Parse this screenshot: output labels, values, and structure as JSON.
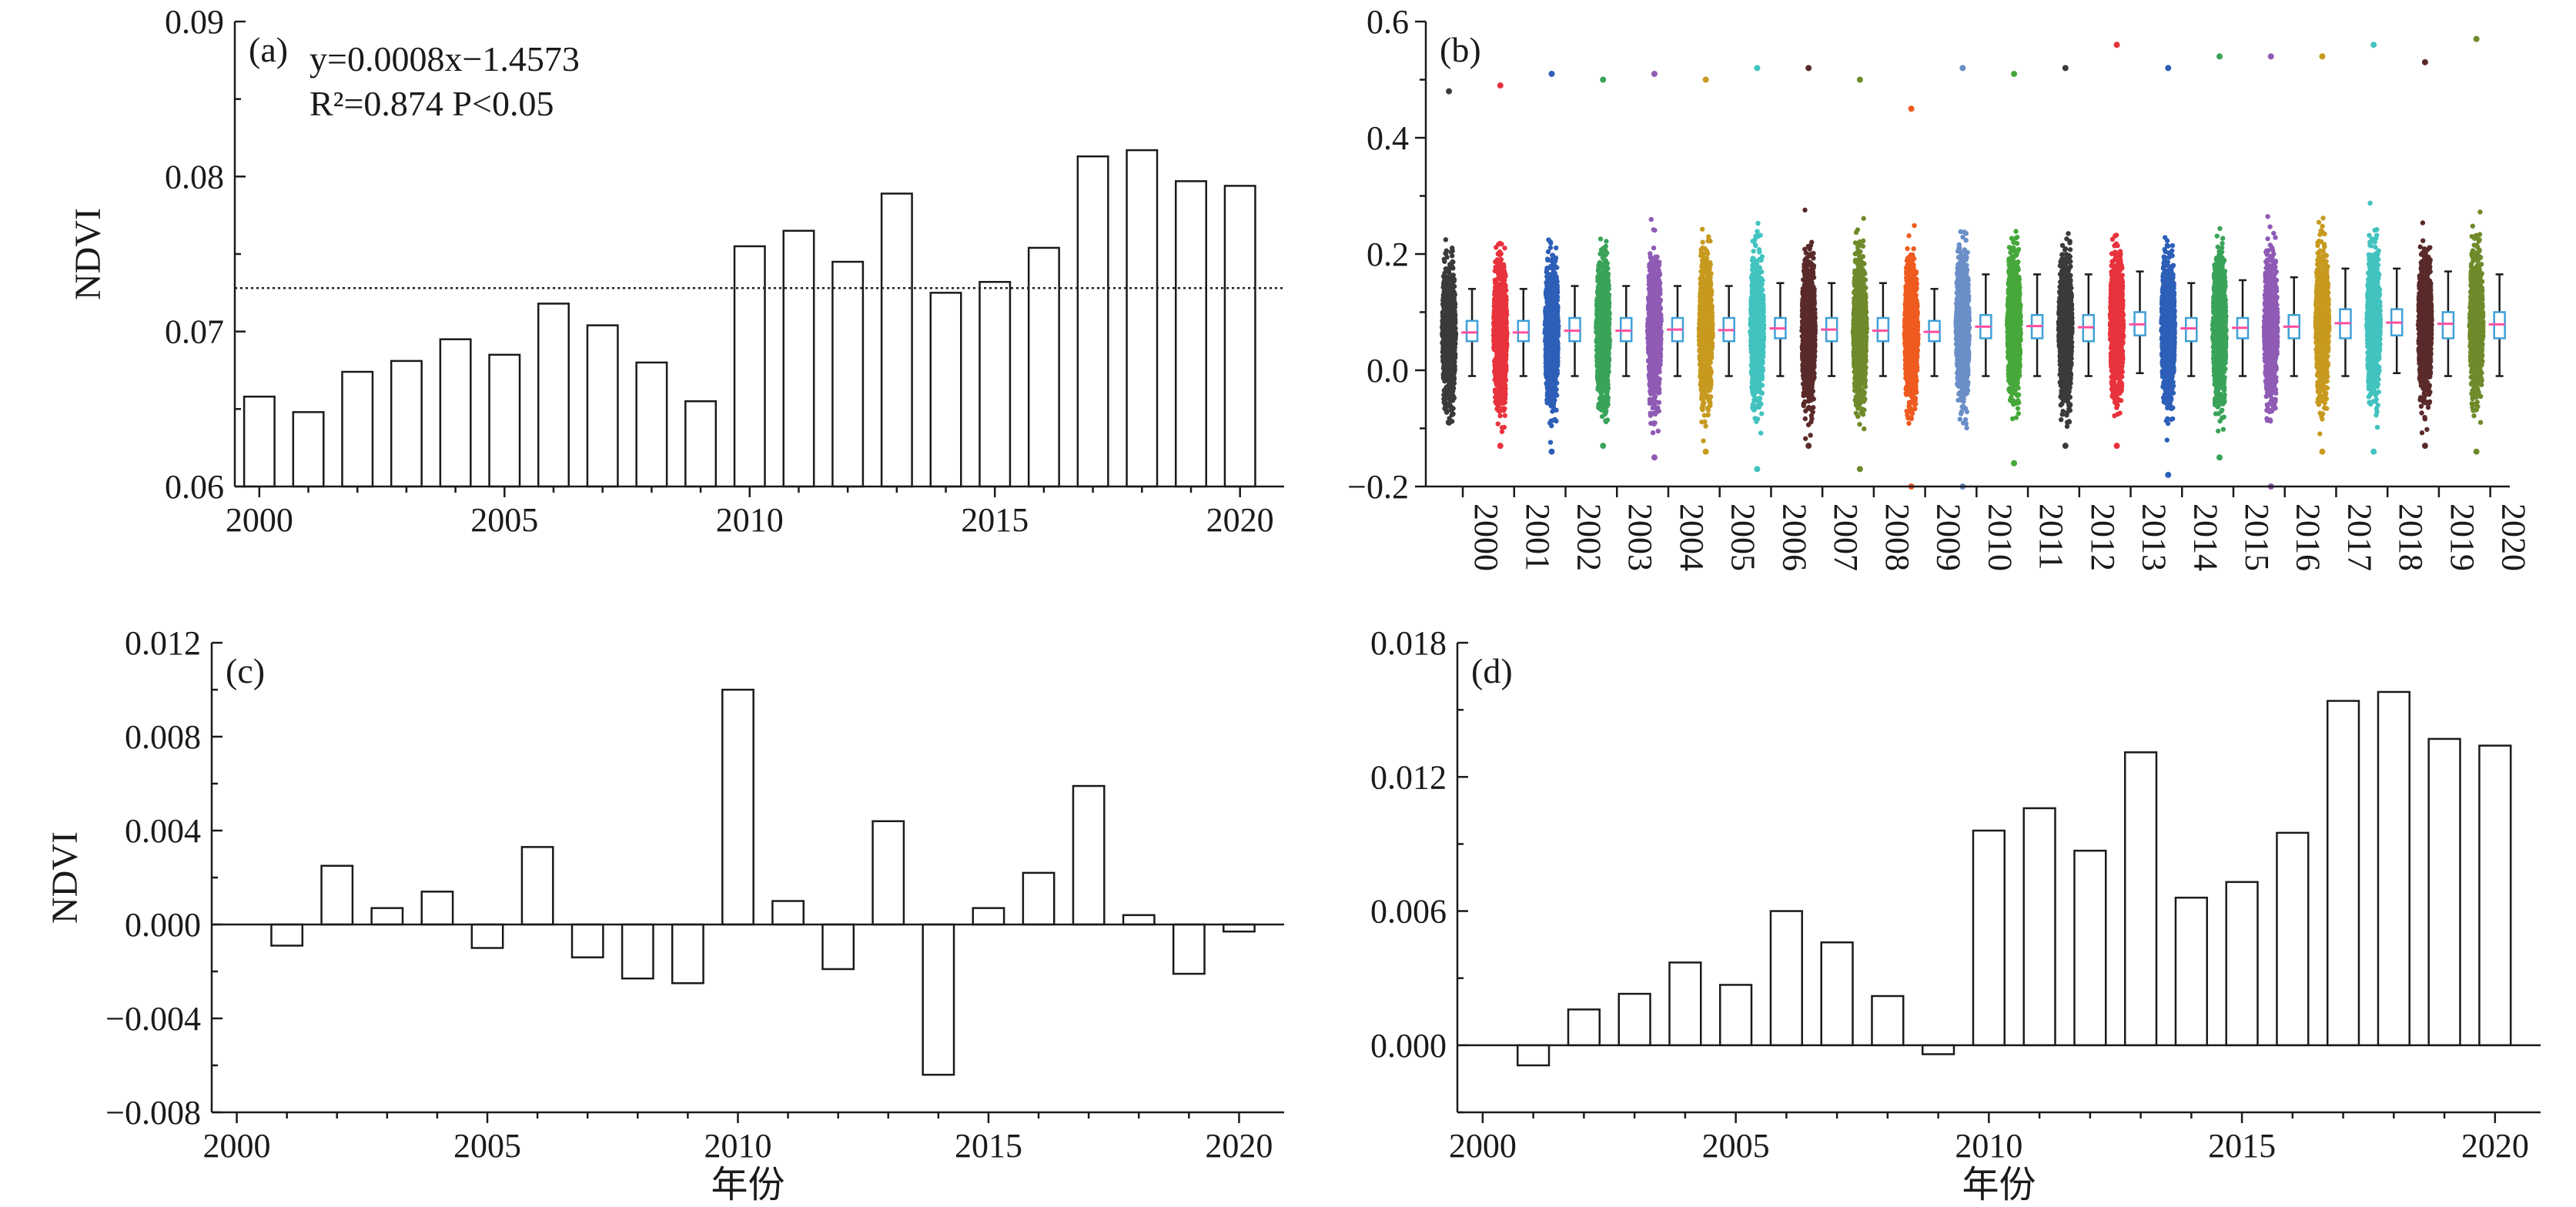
{
  "chart_data": [
    {
      "panel": "(a)",
      "type": "bar",
      "x": [
        2000,
        2001,
        2002,
        2003,
        2004,
        2005,
        2006,
        2007,
        2008,
        2009,
        2010,
        2011,
        2012,
        2013,
        2014,
        2015,
        2016,
        2017,
        2018,
        2019,
        2020
      ],
      "values": [
        0.0658,
        0.0648,
        0.0674,
        0.0681,
        0.0695,
        0.0685,
        0.0718,
        0.0704,
        0.068,
        0.0655,
        0.0755,
        0.0765,
        0.0745,
        0.0789,
        0.0725,
        0.0732,
        0.0754,
        0.0813,
        0.0817,
        0.0797,
        0.0794
      ],
      "ylabel": "NDVI",
      "xlabel": "",
      "ylim": [
        0.06,
        0.09
      ],
      "xlim": [
        1999.5,
        2020.9
      ],
      "yticks": [
        "0.06",
        "0.07",
        "0.08",
        "0.09"
      ],
      "xticks": [
        "2000",
        "2005",
        "2010",
        "2015",
        "2020"
      ],
      "mean_line": 0.0728,
      "equation_line1": "y=0.0008x−1.4573",
      "equation_line2": "R²=0.874  P<0.05"
    },
    {
      "panel": "(b)",
      "type": "scatter",
      "subtype": "jitter-box",
      "categories": [
        "2000",
        "2001",
        "2002",
        "2003",
        "2004",
        "2005",
        "2006",
        "2007",
        "2008",
        "2009",
        "2010",
        "2011",
        "2012",
        "2013",
        "2014",
        "2015",
        "2016",
        "2017",
        "2018",
        "2019",
        "2020"
      ],
      "ylim": [
        -0.2,
        0.6
      ],
      "yticks": [
        "−0.2",
        "0.0",
        "0.2",
        "0.4",
        "0.6"
      ],
      "xlabel": "",
      "ylabel": "",
      "point_min": [
        -0.09,
        -0.13,
        -0.14,
        -0.13,
        -0.15,
        -0.14,
        -0.17,
        -0.13,
        -0.17,
        -0.2,
        -0.2,
        -0.16,
        -0.13,
        -0.13,
        -0.18,
        -0.15,
        -0.2,
        -0.14,
        -0.14,
        -0.13,
        -0.14
      ],
      "point_max": [
        0.48,
        0.49,
        0.51,
        0.5,
        0.51,
        0.5,
        0.52,
        0.52,
        0.5,
        0.45,
        0.52,
        0.51,
        0.52,
        0.56,
        0.52,
        0.54,
        0.54,
        0.54,
        0.56,
        0.53,
        0.57
      ],
      "box_q1": [
        0.05,
        0.05,
        0.05,
        0.05,
        0.05,
        0.05,
        0.055,
        0.05,
        0.05,
        0.05,
        0.055,
        0.055,
        0.05,
        0.06,
        0.05,
        0.055,
        0.055,
        0.055,
        0.06,
        0.055,
        0.055
      ],
      "box_q3": [
        0.085,
        0.085,
        0.09,
        0.09,
        0.09,
        0.09,
        0.09,
        0.09,
        0.09,
        0.085,
        0.095,
        0.095,
        0.095,
        0.1,
        0.09,
        0.09,
        0.095,
        0.105,
        0.105,
        0.1,
        0.1
      ],
      "median": [
        0.065,
        0.065,
        0.068,
        0.068,
        0.07,
        0.069,
        0.072,
        0.07,
        0.068,
        0.066,
        0.075,
        0.076,
        0.074,
        0.079,
        0.072,
        0.073,
        0.075,
        0.081,
        0.082,
        0.08,
        0.079
      ],
      "whisker_low": [
        -0.01,
        -0.01,
        -0.01,
        -0.01,
        -0.01,
        -0.01,
        -0.01,
        -0.01,
        -0.01,
        -0.01,
        -0.01,
        -0.01,
        -0.01,
        -0.005,
        -0.01,
        -0.01,
        -0.01,
        -0.01,
        -0.005,
        -0.01,
        -0.01
      ],
      "whisker_high": [
        0.14,
        0.14,
        0.145,
        0.145,
        0.145,
        0.145,
        0.15,
        0.15,
        0.15,
        0.14,
        0.165,
        0.165,
        0.165,
        0.17,
        0.15,
        0.155,
        0.16,
        0.175,
        0.175,
        0.17,
        0.165
      ],
      "colors": [
        "#3a3a3a",
        "#e8333c",
        "#2d5fb8",
        "#3aa35a",
        "#8f5bb5",
        "#c79a1f",
        "#42c3c0",
        "#5a2a2a",
        "#6f8a2a",
        "#ef5a1f",
        "#6a8fc8",
        "#46a83a",
        "#3a3a3a",
        "#e8333c",
        "#2d5fb8",
        "#3aa35a",
        "#8f5bb5",
        "#c79a1f",
        "#42c3c0",
        "#5a2a2a",
        "#6f8a2a"
      ]
    },
    {
      "panel": "(c)",
      "type": "bar",
      "x": [
        2000,
        2001,
        2002,
        2003,
        2004,
        2005,
        2006,
        2007,
        2008,
        2009,
        2010,
        2011,
        2012,
        2013,
        2014,
        2015,
        2016,
        2017,
        2018,
        2019,
        2020
      ],
      "values": [
        0.0,
        -0.0009,
        0.0025,
        0.0007,
        0.0014,
        -0.001,
        0.0033,
        -0.0014,
        -0.0023,
        -0.0025,
        0.01,
        0.001,
        -0.0019,
        0.0044,
        -0.0064,
        0.0007,
        0.0022,
        0.0059,
        0.0004,
        -0.0021,
        -0.0003
      ],
      "ylabel": "NDVI",
      "xlabel": "年份",
      "ylim": [
        -0.008,
        0.012
      ],
      "xlim": [
        1999.5,
        2020.9
      ],
      "yticks": [
        "−0.008",
        "−0.004",
        "0.000",
        "0.004",
        "0.008",
        "0.012"
      ],
      "xticks": [
        "2000",
        "2005",
        "2010",
        "2015",
        "2020"
      ]
    },
    {
      "panel": "(d)",
      "type": "bar",
      "x": [
        2000,
        2001,
        2002,
        2003,
        2004,
        2005,
        2006,
        2007,
        2008,
        2009,
        2010,
        2011,
        2012,
        2013,
        2014,
        2015,
        2016,
        2017,
        2018,
        2019,
        2020
      ],
      "values": [
        0.0,
        -0.0009,
        0.0016,
        0.0023,
        0.0037,
        0.0027,
        0.006,
        0.0046,
        0.0022,
        -0.0004,
        0.0096,
        0.0106,
        0.0087,
        0.0131,
        0.0066,
        0.0073,
        0.0095,
        0.0154,
        0.0158,
        0.0137,
        0.0134
      ],
      "ylabel": "",
      "xlabel": "年份",
      "ylim": [
        -0.003,
        0.018
      ],
      "xlim": [
        1999.5,
        2020.9
      ],
      "yticks": [
        "0.000",
        "0.006",
        "0.012",
        "0.018"
      ],
      "xticks": [
        "2000",
        "2005",
        "2010",
        "2015",
        "2020"
      ]
    }
  ]
}
